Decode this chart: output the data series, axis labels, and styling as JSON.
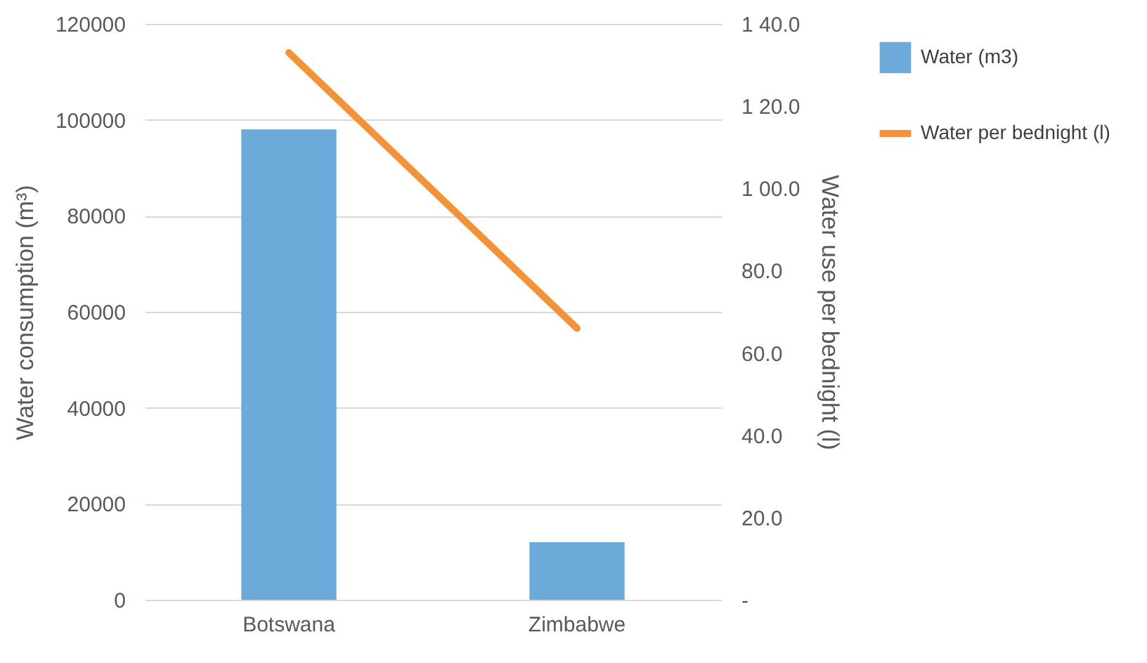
{
  "chart_data": {
    "type": "bar",
    "categories": [
      "Botswana",
      "Zimbabwe"
    ],
    "ylabel": "Water consumption (m³)",
    "y2label": "Water use per bednight (l)",
    "ylim": [
      0,
      120000
    ],
    "yticks": [
      0,
      20000,
      40000,
      60000,
      80000,
      100000,
      120000
    ],
    "y2lim": [
      0,
      140
    ],
    "y2ticks": [
      {
        "value": 0,
        "label": "-"
      },
      {
        "value": 20,
        "label": "20.0"
      },
      {
        "value": 40,
        "label": "40.0"
      },
      {
        "value": 60,
        "label": "60.0"
      },
      {
        "value": 80,
        "label": "80.0"
      },
      {
        "value": 100,
        "label": "1 00.0"
      },
      {
        "value": 120,
        "label": "1 20.0"
      },
      {
        "value": 140,
        "label": "1 40.0"
      }
    ],
    "grid": "y",
    "legend": "right",
    "series": [
      {
        "name": "Water (m3)",
        "type": "bar",
        "color": "#6caad9",
        "values": [
          98000,
          12000
        ]
      },
      {
        "name": "Water per bednight (l)",
        "type": "line",
        "axis": "y2",
        "color": "#f39237",
        "values": [
          133,
          66
        ]
      }
    ]
  }
}
